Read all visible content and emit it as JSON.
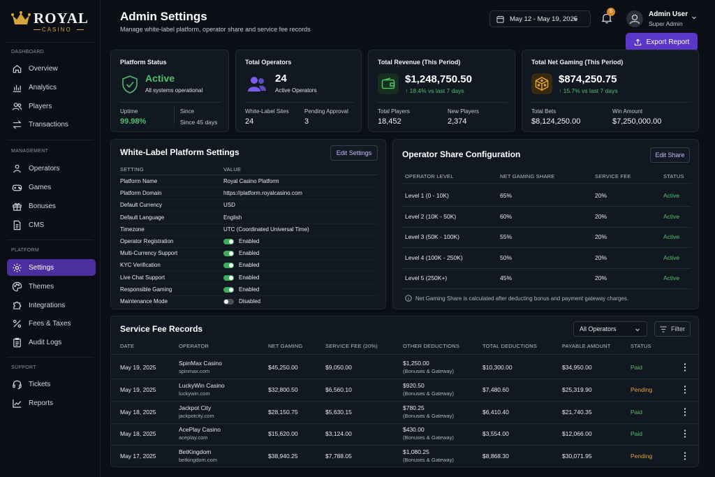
{
  "brand": {
    "name": "ROYAL",
    "sub": "CASINO"
  },
  "sidebar": {
    "sections": [
      {
        "title": "DASHBOARD",
        "items": [
          {
            "label": "Overview",
            "icon": "home-icon"
          },
          {
            "label": "Analytics",
            "icon": "bar-chart-icon"
          },
          {
            "label": "Players",
            "icon": "users-icon"
          },
          {
            "label": "Transactions",
            "icon": "swap-icon"
          }
        ]
      },
      {
        "title": "MANAGEMENT",
        "items": [
          {
            "label": "Operators",
            "icon": "user-group-icon"
          },
          {
            "label": "Games",
            "icon": "gamepad-icon"
          },
          {
            "label": "Bonuses",
            "icon": "gift-icon"
          },
          {
            "label": "CMS",
            "icon": "document-icon"
          }
        ]
      },
      {
        "title": "PLATFORM",
        "items": [
          {
            "label": "Settings",
            "icon": "gear-icon",
            "active": true
          },
          {
            "label": "Themes",
            "icon": "palette-icon"
          },
          {
            "label": "Integrations",
            "icon": "puzzle-icon"
          },
          {
            "label": "Fees & Taxes",
            "icon": "percent-icon"
          },
          {
            "label": "Audit Logs",
            "icon": "clipboard-icon"
          }
        ]
      },
      {
        "title": "SUPPORT",
        "items": [
          {
            "label": "Tickets",
            "icon": "headset-icon"
          },
          {
            "label": "Reports",
            "icon": "trend-icon"
          }
        ]
      }
    ]
  },
  "header": {
    "title": "Admin Settings",
    "subtitle": "Manage white-label platform, operator share and service fee records",
    "date_range": "May 12 - May 19, 2025",
    "notifications": "5",
    "user_name": "Admin User",
    "user_role": "Super Admin",
    "export_label": "Export Report"
  },
  "stats": {
    "platform": {
      "title": "Platform Status",
      "status": "Active",
      "status_sub": "All systems operational",
      "uptime_label": "Uptime",
      "uptime_value": "99.98%",
      "since_label": "Since",
      "since_value": "Since 45 days"
    },
    "operators": {
      "title": "Total Operators",
      "count": "24",
      "count_sub": "Active Operators",
      "wl_label": "White-Label Sites",
      "wl_value": "24",
      "pending_label": "Pending Approval",
      "pending_value": "3"
    },
    "revenue": {
      "title": "Total Revenue (This Period)",
      "amount": "$1,248,750.50",
      "change": "↑ 18.4% vs last 7 days",
      "players_label": "Total Players",
      "players_value": "18,452",
      "new_label": "New Players",
      "new_value": "2,374"
    },
    "net_gaming": {
      "title": "Total Net Gaming (This Period)",
      "amount": "$874,250.75",
      "change": "↑ 15.7% vs last 7 days",
      "bets_label": "Total Bets",
      "bets_value": "$8,124,250.00",
      "win_label": "Win Amount",
      "win_value": "$7,250,000.00"
    }
  },
  "wl_settings": {
    "title": "White-Label Platform Settings",
    "edit_label": "Edit Settings",
    "col_setting": "SETTING",
    "col_value": "VALUE",
    "rows": [
      {
        "setting": "Platform Name",
        "value": "Royal Casino Platform"
      },
      {
        "setting": "Platform Domain",
        "value": "https://platform.royalcasino.com"
      },
      {
        "setting": "Default Currency",
        "value": "USD"
      },
      {
        "setting": "Default Language",
        "value": "English"
      },
      {
        "setting": "Timezone",
        "value": "UTC (Coordinated Universal Time)"
      },
      {
        "setting": "Operator Registration",
        "value": "Enabled",
        "toggle": "on"
      },
      {
        "setting": "Multi-Currency Support",
        "value": "Enabled",
        "toggle": "on"
      },
      {
        "setting": "KYC Verification",
        "value": "Enabled",
        "toggle": "on"
      },
      {
        "setting": "Live Chat Support",
        "value": "Enabled",
        "toggle": "on"
      },
      {
        "setting": "Responsible Gaming",
        "value": "Enabled",
        "toggle": "on"
      },
      {
        "setting": "Maintenance Mode",
        "value": "Disabled",
        "toggle": "off"
      }
    ]
  },
  "operator_share": {
    "title": "Operator Share Configuration",
    "edit_label": "Edit Share",
    "headers": [
      "OPERATOR LEVEL",
      "NET GAMING SHARE",
      "SERVICE FEE",
      "STATUS"
    ],
    "rows": [
      {
        "level": "Level 1 (0 - 10K)",
        "share": "65%",
        "fee": "20%",
        "status": "Active"
      },
      {
        "level": "Level 2 (10K - 50K)",
        "share": "60%",
        "fee": "20%",
        "status": "Active"
      },
      {
        "level": "Level 3 (50K - 100K)",
        "share": "55%",
        "fee": "20%",
        "status": "Active"
      },
      {
        "level": "Level 4 (100K - 250K)",
        "share": "50%",
        "fee": "20%",
        "status": "Active"
      },
      {
        "level": "Level 5 (250K+)",
        "share": "45%",
        "fee": "20%",
        "status": "Active"
      }
    ],
    "note": "Net Gaming Share is calculated after deducting bonus and payment gateway charges."
  },
  "fee_records": {
    "title": "Service Fee Records",
    "filter_select": "All Operators",
    "filter_label": "Filter",
    "headers": [
      "DATE",
      "OPERATOR",
      "NET GAMING",
      "SERVICE FEE (20%)",
      "OTHER DEDUCTIONS",
      "TOTAL DEDUCTIONS",
      "PAYABLE AMOUNT",
      "STATUS"
    ],
    "rows": [
      {
        "date": "May 19, 2025",
        "operator": "SpinMax Casino",
        "domain": "spinmax.com",
        "net": "$45,250.00",
        "fee": "$9,050.00",
        "other": "$1,250.00",
        "other_sub": "(Bonuses & Gateway)",
        "total": "$10,300.00",
        "payable": "$34,950.00",
        "status": "Paid"
      },
      {
        "date": "May 19, 2025",
        "operator": "LuckyWin Casino",
        "domain": "luckywin.com",
        "net": "$32,800.50",
        "fee": "$6,560.10",
        "other": "$920.50",
        "other_sub": "(Bonuses & Gateway)",
        "total": "$7,480.60",
        "payable": "$25,319.90",
        "status": "Pending"
      },
      {
        "date": "May 18, 2025",
        "operator": "Jackpot City",
        "domain": "jackpotcity.com",
        "net": "$28,150.75",
        "fee": "$5,630.15",
        "other": "$780.25",
        "other_sub": "(Bonuses & Gateway)",
        "total": "$6,410.40",
        "payable": "$21,740.35",
        "status": "Paid"
      },
      {
        "date": "May 18, 2025",
        "operator": "AcePlay Casino",
        "domain": "aceplay.com",
        "net": "$15,620.00",
        "fee": "$3,124.00",
        "other": "$430.00",
        "other_sub": "(Bonuses & Gateway)",
        "total": "$3,554.00",
        "payable": "$12,066.00",
        "status": "Paid"
      },
      {
        "date": "May 17, 2025",
        "operator": "BetKingdom",
        "domain": "betkingdom.com",
        "net": "$38,940.25",
        "fee": "$7,788.05",
        "other": "$1,080.25",
        "other_sub": "(Bonuses & Gateway)",
        "total": "$8,868.30",
        "payable": "$30,071.95",
        "status": "Pending"
      }
    ]
  },
  "colors": {
    "accent": "#5a36c9",
    "active_nav": "#4b2f9f",
    "success": "#4fc06a",
    "warning": "#e6a23c",
    "gold": "#d4a63a"
  }
}
